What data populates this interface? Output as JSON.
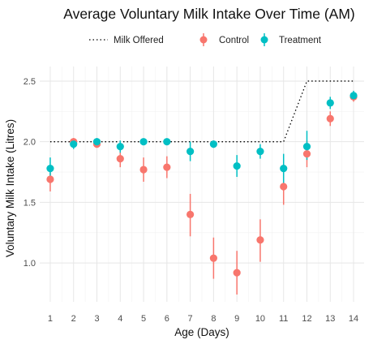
{
  "chart_data": {
    "type": "scatter",
    "title": "Average Voluntary Milk Intake Over Time (AM)",
    "xlabel": "Age (Days)",
    "ylabel": "Voluntary Milk Intake (Litres)",
    "x": [
      1,
      2,
      3,
      4,
      5,
      6,
      7,
      8,
      9,
      10,
      11,
      12,
      13,
      14
    ],
    "xticks": [
      "1",
      "2",
      "3",
      "4",
      "5",
      "6",
      "7",
      "8",
      "9",
      "10",
      "11",
      "12",
      "13",
      "14"
    ],
    "yticks": [
      "1.0",
      "1.5",
      "2.0",
      "2.5"
    ],
    "xlim": [
      0.55,
      14.45
    ],
    "ylim": [
      0.68,
      2.62
    ],
    "grid": true,
    "legend_position": "top",
    "series": [
      {
        "name": "Control",
        "color": "#F8766D",
        "kind": "points_errorbars",
        "values": [
          1.69,
          2.0,
          1.98,
          1.86,
          1.77,
          1.79,
          1.4,
          1.04,
          0.92,
          1.19,
          1.63,
          1.9,
          2.19,
          2.37
        ],
        "lower": [
          1.59,
          1.97,
          1.95,
          1.79,
          1.67,
          1.7,
          1.22,
          0.87,
          0.74,
          1.01,
          1.48,
          1.79,
          2.13,
          2.33
        ],
        "upper": [
          1.79,
          2.03,
          2.01,
          1.93,
          1.87,
          1.88,
          1.57,
          1.21,
          1.1,
          1.36,
          1.78,
          2.01,
          2.25,
          2.41
        ]
      },
      {
        "name": "Treatment",
        "color": "#00BFC4",
        "kind": "points_errorbars",
        "values": [
          1.78,
          1.98,
          2.0,
          1.96,
          2.0,
          2.0,
          1.92,
          1.98,
          1.8,
          1.92,
          1.78,
          1.96,
          2.32,
          2.38
        ],
        "lower": [
          1.69,
          1.94,
          1.97,
          1.91,
          1.98,
          1.98,
          1.84,
          1.95,
          1.71,
          1.86,
          1.66,
          1.85,
          2.27,
          2.34
        ],
        "upper": [
          1.87,
          2.02,
          2.03,
          2.01,
          2.02,
          2.02,
          2.0,
          2.01,
          1.89,
          1.98,
          1.9,
          2.09,
          2.37,
          2.42
        ]
      },
      {
        "name": "Milk Offered",
        "color": "#000000",
        "kind": "dotted_line",
        "values": [
          2.0,
          2.0,
          2.0,
          2.0,
          2.0,
          2.0,
          2.0,
          2.0,
          2.0,
          2.0,
          2.0,
          2.5,
          2.5,
          2.5
        ]
      }
    ]
  }
}
